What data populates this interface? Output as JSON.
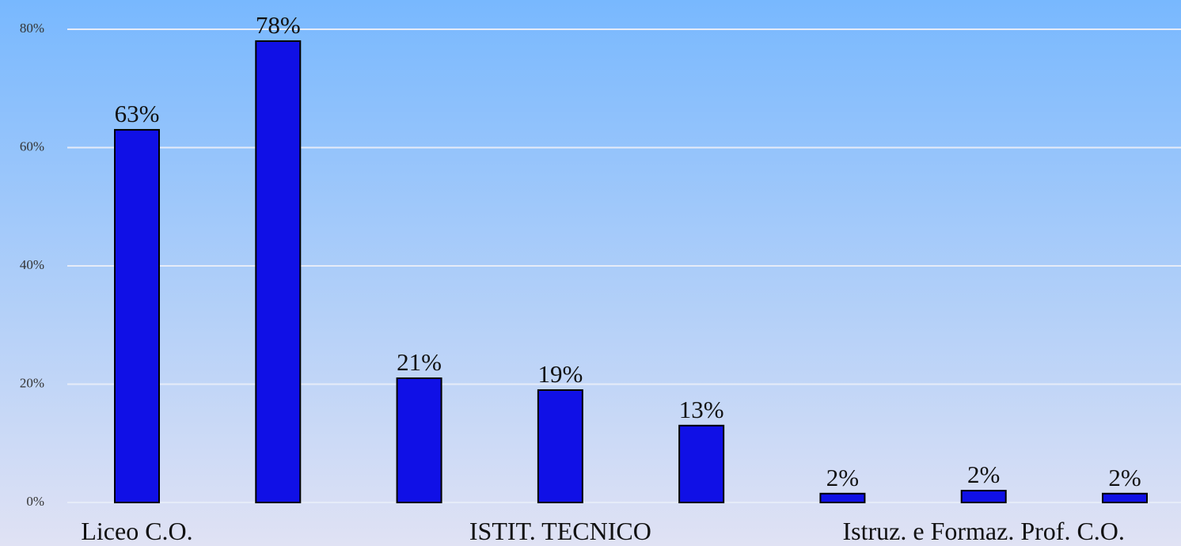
{
  "chart_data": {
    "type": "bar",
    "categories": [
      "Liceo C.O.",
      null,
      null,
      "ISTIT. TECNICO",
      null,
      null,
      "Istruz. e Formaz. Prof. C.O.",
      null
    ],
    "values": [
      63,
      78,
      21,
      19,
      13,
      1.5,
      2,
      1.5
    ],
    "value_labels": [
      "63%",
      "78%",
      "21%",
      "19%",
      "13%",
      "2%",
      "2%",
      "2%"
    ],
    "color": "#1010e6",
    "ylim": [
      0,
      80
    ],
    "yticks": [
      {
        "value": 0,
        "label": "0%"
      },
      {
        "value": 20,
        "label": "20%"
      },
      {
        "value": 40,
        "label": "40%"
      },
      {
        "value": 60,
        "label": "60%"
      },
      {
        "value": 80,
        "label": "80%"
      }
    ],
    "grid": true
  }
}
